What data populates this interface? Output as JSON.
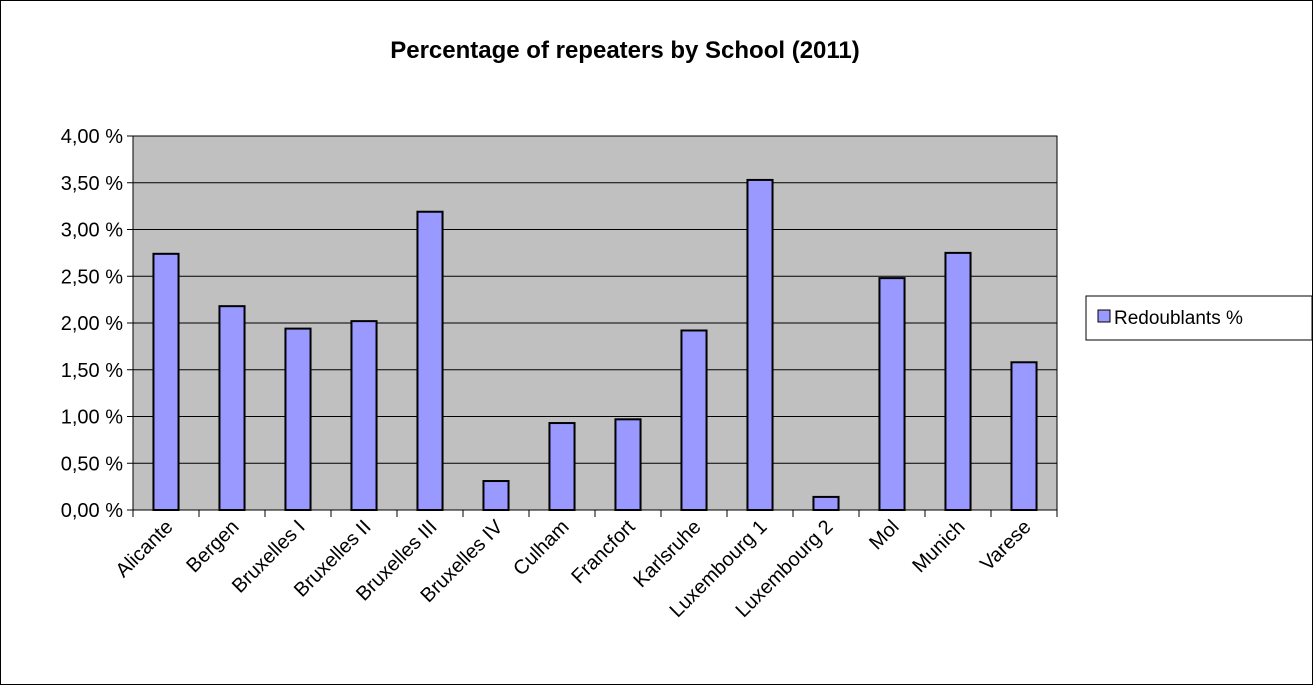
{
  "chart_data": {
    "type": "bar",
    "title": "Percentage of repeaters by School (2011)",
    "xlabel": "",
    "ylabel": "",
    "categories": [
      "Alicante",
      "Bergen",
      "Bruxelles I",
      "Bruxelles II",
      "Bruxelles III",
      "Bruxelles IV",
      "Culham",
      "Francfort",
      "Karlsruhe",
      "Luxembourg 1",
      "Luxembourg 2",
      "Mol",
      "Munich",
      "Varese"
    ],
    "series": [
      {
        "name": "Redoublants %",
        "values": [
          2.74,
          2.18,
          1.94,
          2.02,
          3.19,
          0.31,
          0.93,
          0.97,
          1.92,
          3.53,
          0.14,
          2.48,
          2.75,
          1.58
        ]
      }
    ],
    "ylim": [
      0,
      4
    ],
    "yticks": [
      0,
      0.5,
      1,
      1.5,
      2,
      2.5,
      3,
      3.5,
      4
    ],
    "ytick_labels": [
      "0,00 %",
      "0,50 %",
      "1,00 %",
      "1,50 %",
      "2,00 %",
      "2,50 %",
      "3,00 %",
      "3,50 %",
      "4,00 %"
    ],
    "grid": true,
    "legend_position": "right",
    "colors": {
      "bar_fill": "#9999FF",
      "bar_stroke": "#000000",
      "plot_background": "#C0C0C0",
      "gridline": "#000000",
      "frame": "#000000"
    }
  }
}
